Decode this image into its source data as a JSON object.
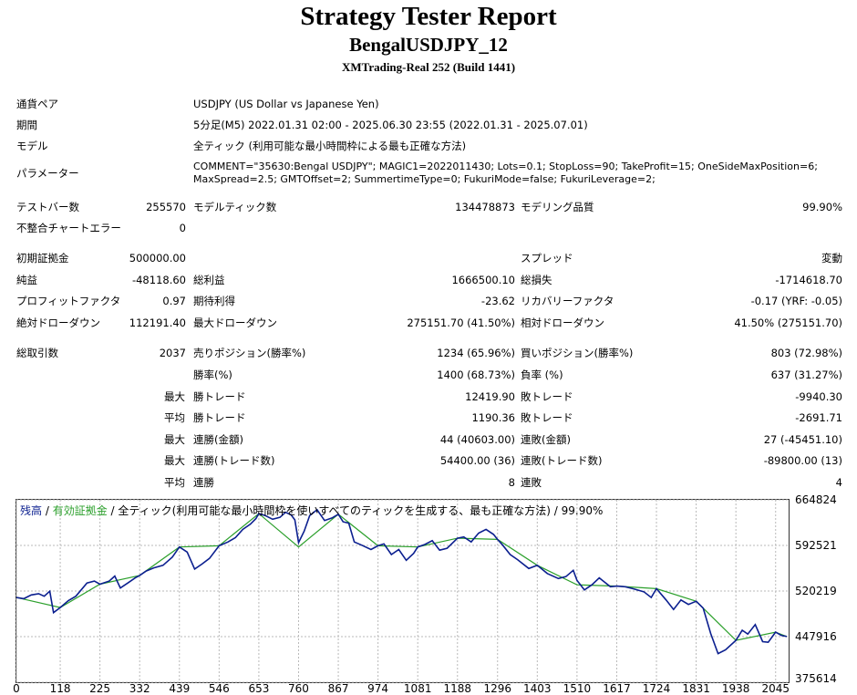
{
  "header": {
    "title": "Strategy Tester Report",
    "expert": "BengalUSDJPY_12",
    "server": "XMTrading-Real 252 (Build 1441)"
  },
  "info": {
    "pair_label": "通貨ペア",
    "pair_value": "USDJPY (US Dollar vs Japanese Yen)",
    "period_label": "期間",
    "period_value": "5分足(M5) 2022.01.31 02:00 - 2025.06.30 23:55 (2022.01.31 - 2025.07.01)",
    "model_label": "モデル",
    "model_value": "全ティック (利用可能な最小時間枠による最も正確な方法)",
    "params_label": "パラメーター",
    "params_line1": "COMMENT=\"35630:Bengal USDJPY\"; MAGIC1=2022011430; Lots=0.1; StopLoss=90; TakeProfit=15; OneSideMaxPosition=6;",
    "params_line2": "MaxSpread=2.5; GMTOffset=2; SummertimeType=0; FukuriMode=false; FukuriLeverage=2;"
  },
  "stats": {
    "bars_label": "テストバー数",
    "bars_value": "255570",
    "ticks_label": "モデルティック数",
    "ticks_value": "134478873",
    "quality_label": "モデリング品質",
    "quality_value": "99.90%",
    "mismatch_label": "不整合チャートエラー",
    "mismatch_value": "0",
    "deposit_label": "初期証拠金",
    "deposit_value": "500000.00",
    "spread_label": "スプレッド",
    "spread_value": "変動",
    "net_label": "純益",
    "net_value": "-48118.60",
    "gross_profit_label": "総利益",
    "gross_profit_value": "1666500.10",
    "gross_loss_label": "総損失",
    "gross_loss_value": "-1714618.70",
    "pf_label": "プロフィットファクタ",
    "pf_value": "0.97",
    "expected_label": "期待利得",
    "expected_value": "-23.62",
    "recovery_label": "リカバリーファクタ",
    "recovery_value": "-0.17 (YRF: -0.05)",
    "abs_dd_label": "絶対ドローダウン",
    "abs_dd_value": "112191.40",
    "max_dd_label": "最大ドローダウン",
    "max_dd_value": "275151.70 (41.50%)",
    "rel_dd_label": "相対ドローダウン",
    "rel_dd_value": "41.50% (275151.70)",
    "trades_label": "総取引数",
    "trades_value": "2037",
    "short_label": "売りポジション(勝率%)",
    "short_value": "1234 (65.96%)",
    "long_label": "買いポジション(勝率%)",
    "long_value": "803 (72.98%)",
    "win_rate_label": "勝率(%)",
    "win_rate_value": "1400 (68.73%)",
    "loss_rate_label": "負率 (%)",
    "loss_rate_value": "637 (31.27%)",
    "max_label": "最大",
    "avg_label": "平均",
    "largest_win_label": "勝トレード",
    "largest_win_value": "12419.90",
    "largest_loss_label": "敗トレード",
    "largest_loss_value": "-9940.30",
    "avg_win_label": "勝トレード",
    "avg_win_value": "1190.36",
    "avg_loss_label": "敗トレード",
    "avg_loss_value": "-2691.71",
    "max_consec_wins_label": "連勝(金額)",
    "max_consec_wins_value": "44 (40603.00)",
    "max_consec_losses_label": "連敗(金額)",
    "max_consec_losses_value": "27 (-45451.10)",
    "max_consec_profit_label": "連勝(トレード数)",
    "max_consec_profit_value": "54400.00 (36)",
    "max_consec_loss_label": "連敗(トレード数)",
    "max_consec_loss_value": "-89800.00 (13)",
    "avg_consec_wins_label": "連勝",
    "avg_consec_wins_value": "8",
    "avg_consec_losses_label": "連敗",
    "avg_consec_losses_value": "4"
  },
  "chart_data": {
    "type": "line",
    "legend": {
      "balance": "残高",
      "sep1": " / ",
      "equity": "有効証拠金",
      "sep2": " / ",
      "model": "全ティック(利用可能な最小時間枠を使いすべてのティックを生成する、最も正確な方法)",
      "sep3": " / ",
      "quality": "99.90%"
    },
    "colors": {
      "balance": "#0b1f8f",
      "equity": "#2ca02c",
      "grid": "#b9b9b9"
    },
    "x_ticks": [
      0,
      118,
      225,
      332,
      439,
      546,
      653,
      760,
      867,
      974,
      1081,
      1188,
      1296,
      1403,
      1510,
      1617,
      1724,
      1831,
      1938,
      2045
    ],
    "y_ticks": [
      375614,
      447916,
      520219,
      592521,
      664824
    ],
    "xlim": [
      0,
      2080
    ],
    "ylim": [
      375614,
      664824
    ],
    "grid": true,
    "series": [
      {
        "name": "残高",
        "x": [
          0,
          20,
          40,
          60,
          75,
          90,
          100,
          118,
          140,
          160,
          190,
          210,
          225,
          250,
          265,
          280,
          300,
          320,
          332,
          350,
          370,
          395,
          420,
          439,
          460,
          480,
          500,
          520,
          546,
          570,
          590,
          610,
          630,
          645,
          653,
          670,
          690,
          710,
          725,
          740,
          750,
          760,
          775,
          790,
          810,
          830,
          850,
          867,
          880,
          895,
          910,
          930,
          955,
          974,
          990,
          1010,
          1030,
          1050,
          1070,
          1081,
          1100,
          1120,
          1140,
          1160,
          1188,
          1205,
          1225,
          1245,
          1265,
          1285,
          1296,
          1310,
          1330,
          1350,
          1380,
          1403,
          1430,
          1460,
          1480,
          1500,
          1510,
          1530,
          1550,
          1570,
          1600,
          1617,
          1640,
          1660,
          1690,
          1710,
          1724,
          1750,
          1770,
          1790,
          1810,
          1831,
          1850,
          1870,
          1890,
          1910,
          1938,
          1955,
          1970,
          1990,
          2010,
          2025,
          2045,
          2060,
          2075
        ],
        "y": [
          510000,
          508000,
          514000,
          516000,
          512000,
          520000,
          486000,
          494000,
          505000,
          512000,
          533000,
          536000,
          531000,
          536000,
          544000,
          525000,
          533000,
          541000,
          545000,
          552000,
          557000,
          561000,
          574000,
          590000,
          582000,
          555000,
          563000,
          572000,
          592000,
          598000,
          605000,
          618000,
          626000,
          635000,
          643000,
          640000,
          634000,
          637000,
          645000,
          641000,
          633000,
          597000,
          615000,
          640000,
          649000,
          632000,
          636000,
          642000,
          630000,
          628000,
          598000,
          593000,
          586000,
          592000,
          595000,
          578000,
          586000,
          569000,
          580000,
          590000,
          594000,
          600000,
          585000,
          588000,
          604000,
          606000,
          598000,
          612000,
          618000,
          610000,
          602000,
          593000,
          578000,
          570000,
          556000,
          561000,
          548000,
          540000,
          543000,
          553000,
          537000,
          522000,
          530000,
          541000,
          527000,
          528000,
          527000,
          524000,
          519000,
          510000,
          524000,
          506000,
          491000,
          506000,
          499000,
          504000,
          493000,
          453000,
          421000,
          427000,
          442000,
          458000,
          452000,
          467000,
          440000,
          439000,
          455000,
          450000,
          448000
        ]
      },
      {
        "name": "有効証拠金",
        "x": [
          0,
          118,
          225,
          332,
          439,
          546,
          653,
          760,
          867,
          974,
          1081,
          1188,
          1296,
          1403,
          1510,
          1617,
          1724,
          1831,
          1938,
          2045,
          2075
        ],
        "y": [
          510000,
          494000,
          531000,
          545000,
          590000,
          592000,
          643000,
          590000,
          642000,
          592000,
          590000,
          604000,
          602000,
          561000,
          530000,
          528000,
          524000,
          504000,
          442000,
          455000,
          448000
        ]
      }
    ]
  }
}
